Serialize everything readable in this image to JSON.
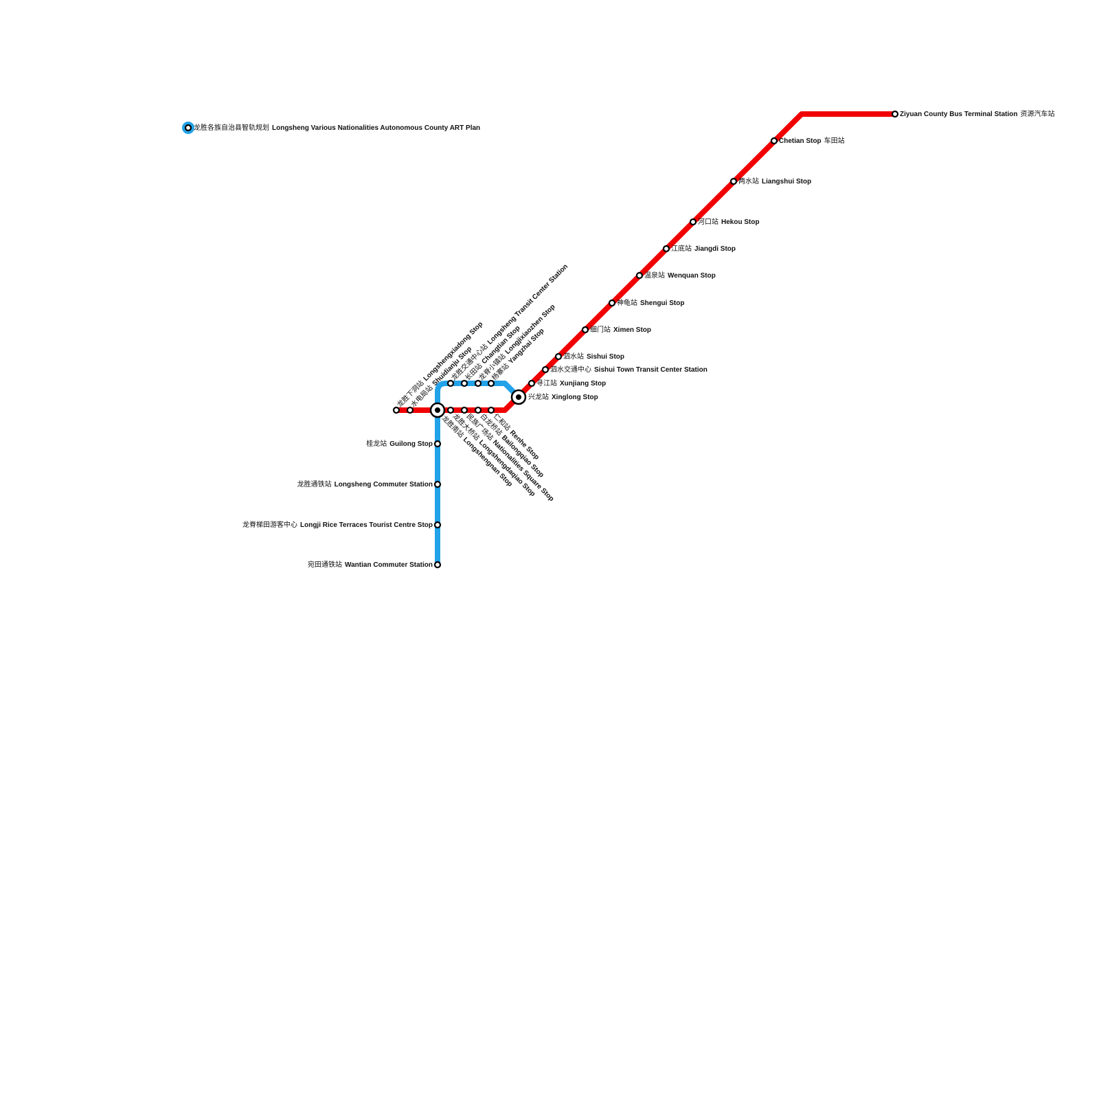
{
  "title": {
    "cn": "龙胜各族自治县智轨规划",
    "en": "Longsheng Various Nationalities Autonomous County ART Plan"
  },
  "stations": [
    {
      "cn": "龙胜下洞站",
      "en": "Longshengxiadong Stop"
    },
    {
      "cn": "水电局站",
      "en": "Shuidianju Stop"
    },
    {
      "cn": "龙胜南站",
      "en": "Longshengnan Stop"
    },
    {
      "cn": "龙胜大桥站",
      "en": "Longshengdaqiao Stop"
    },
    {
      "cn": "民族广场站",
      "en": "Nationalities Square Stop"
    },
    {
      "cn": "白龙桥站",
      "en": "Bailongqiao Stop"
    },
    {
      "cn": "仁和站",
      "en": "Renhe Stop"
    },
    {
      "cn": "龙胜交通中心站",
      "en": "Longsheng Transit Center Station"
    },
    {
      "cn": "长田站",
      "en": "Changtian Stop"
    },
    {
      "cn": "龙脊小镇站",
      "en": "Longjixiaozhen Stop"
    },
    {
      "cn": "杨寨站",
      "en": "Yangzhai Stop"
    },
    {
      "cn": "兴龙站",
      "en": "Xinglong Stop"
    },
    {
      "cn": "寻江站",
      "en": "Xunjiang Stop"
    },
    {
      "cn": "泗水交通中心",
      "en": "Sishui Town Transit Center Station"
    },
    {
      "cn": "泗水站",
      "en": "Sishui Stop"
    },
    {
      "cn": "细门站",
      "en": "Ximen Stop"
    },
    {
      "cn": "神龟站",
      "en": "Shengui Stop"
    },
    {
      "cn": "温泉站",
      "en": "Wenquan Stop"
    },
    {
      "cn": "江底站",
      "en": "Jiangdi Stop"
    },
    {
      "cn": "河口站",
      "en": "Hekou Stop"
    },
    {
      "cn": "两水站",
      "en": "Liangshui Stop"
    },
    {
      "en": "Chetian Stop",
      "cn": "车田站"
    },
    {
      "en": "Ziyuan County Bus Terminal Station",
      "cn": "资源汽车站"
    },
    {
      "cn": "桂龙站",
      "en": "Guilong Stop"
    },
    {
      "cn": "龙胜通铁站",
      "en": "Longsheng Commuter Station"
    },
    {
      "cn": "龙脊梯田游客中心",
      "en": "Longji Rice Terraces Tourist Centre Stop"
    },
    {
      "cn": "宛田通铁站",
      "en": "Wantian Commuter Station"
    }
  ]
}
